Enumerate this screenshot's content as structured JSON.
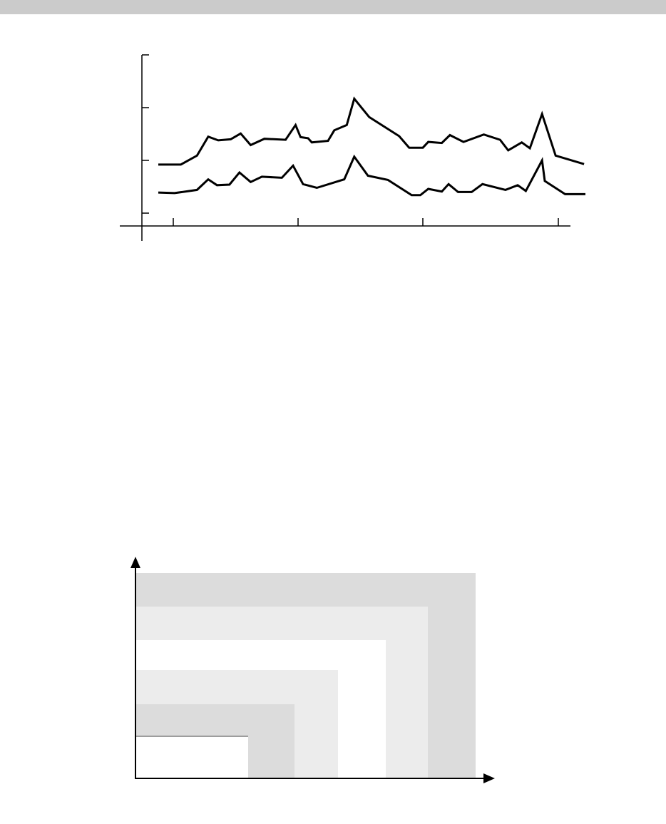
{
  "chart_data": [
    {
      "type": "line",
      "title": "",
      "xlabel": "",
      "ylabel": "",
      "x_ticks": [
        0,
        1,
        2,
        3
      ],
      "y_ticks": [
        0,
        1,
        2,
        3
      ],
      "xlim": [
        -0.25,
        3.2
      ],
      "ylim": [
        -0.25,
        3
      ],
      "grid": false,
      "series": [
        {
          "points": [
            [
              -0.12,
              0.92
            ],
            [
              0.06,
              0.92
            ],
            [
              0.19,
              1.09
            ],
            [
              0.28,
              1.45
            ],
            [
              0.36,
              1.38
            ],
            [
              0.46,
              1.4
            ],
            [
              0.54,
              1.51
            ],
            [
              0.62,
              1.29
            ],
            [
              0.73,
              1.41
            ],
            [
              0.9,
              1.39
            ],
            [
              0.98,
              1.67
            ],
            [
              1.02,
              1.44
            ],
            [
              1.08,
              1.42
            ],
            [
              1.11,
              1.34
            ],
            [
              1.24,
              1.37
            ],
            [
              1.29,
              1.57
            ],
            [
              1.39,
              1.67
            ],
            [
              1.45,
              2.17
            ],
            [
              1.57,
              1.82
            ],
            [
              1.81,
              1.46
            ],
            [
              1.89,
              1.24
            ],
            [
              2.0,
              1.24
            ],
            [
              2.04,
              1.35
            ],
            [
              2.14,
              1.33
            ],
            [
              2.2,
              1.48
            ],
            [
              2.3,
              1.35
            ],
            [
              2.45,
              1.49
            ],
            [
              2.57,
              1.39
            ],
            [
              2.63,
              1.19
            ],
            [
              2.73,
              1.34
            ],
            [
              2.79,
              1.23
            ],
            [
              2.88,
              1.88
            ],
            [
              2.98,
              1.09
            ],
            [
              3.19,
              0.93
            ]
          ]
        },
        {
          "points": [
            [
              -0.12,
              0.39
            ],
            [
              0.01,
              0.38
            ],
            [
              0.19,
              0.44
            ],
            [
              0.28,
              0.64
            ],
            [
              0.35,
              0.53
            ],
            [
              0.45,
              0.54
            ],
            [
              0.53,
              0.77
            ],
            [
              0.62,
              0.59
            ],
            [
              0.71,
              0.69
            ],
            [
              0.87,
              0.67
            ],
            [
              0.96,
              0.9
            ],
            [
              1.04,
              0.55
            ],
            [
              1.15,
              0.48
            ],
            [
              1.37,
              0.64
            ],
            [
              1.45,
              1.07
            ],
            [
              1.56,
              0.71
            ],
            [
              1.72,
              0.63
            ],
            [
              1.91,
              0.34
            ],
            [
              1.98,
              0.34
            ],
            [
              2.04,
              0.46
            ],
            [
              2.14,
              0.41
            ],
            [
              2.19,
              0.55
            ],
            [
              2.26,
              0.4
            ],
            [
              2.36,
              0.4
            ],
            [
              2.44,
              0.55
            ],
            [
              2.61,
              0.44
            ],
            [
              2.7,
              0.53
            ],
            [
              2.76,
              0.42
            ],
            [
              2.88,
              1.0
            ],
            [
              2.9,
              0.61
            ],
            [
              3.05,
              0.36
            ],
            [
              3.2,
              0.36
            ]
          ]
        }
      ]
    }
  ],
  "diagram": {
    "colors": {
      "dark": "#dcdcdc",
      "light": "#ececec",
      "white": "#ffffff",
      "axis": "#000000"
    },
    "nested_regions": [
      "dark",
      "light",
      "white",
      "light",
      "dark",
      "white"
    ]
  }
}
